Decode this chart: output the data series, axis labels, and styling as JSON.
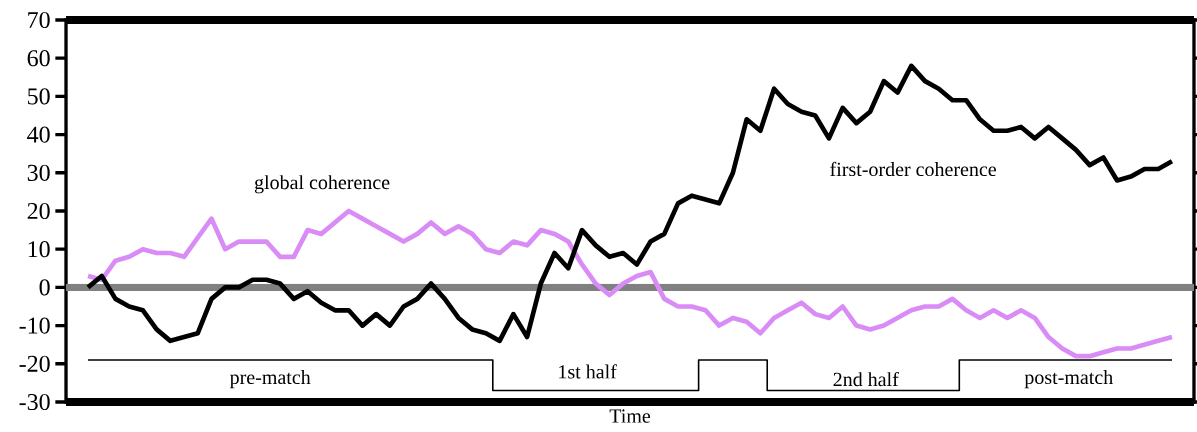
{
  "chart_data": {
    "type": "line",
    "xlabel": "Time",
    "categories": [
      null,
      null,
      null,
      null,
      null,
      null,
      null,
      null,
      null,
      null,
      null,
      null,
      null,
      null,
      null,
      null,
      null,
      null,
      null,
      null,
      null,
      null,
      null,
      null,
      null,
      null,
      null,
      null,
      null,
      null,
      null,
      null,
      null,
      null,
      null,
      null,
      null,
      null,
      null,
      null,
      null,
      null,
      null,
      null,
      null,
      null,
      null,
      null,
      null,
      null,
      null,
      null,
      null,
      null,
      null,
      null,
      null,
      null,
      null,
      null,
      null,
      null,
      null,
      null,
      null,
      null,
      null,
      null,
      null,
      null,
      null,
      null,
      null,
      null,
      null,
      null,
      null,
      null,
      null,
      null
    ],
    "series": [
      {
        "name": "global coherence",
        "color": "#d98cf5",
        "values": [
          3,
          2,
          7,
          8,
          10,
          9,
          9,
          8,
          13,
          18,
          10,
          12,
          12,
          12,
          8,
          8,
          15,
          14,
          17,
          20,
          18,
          16,
          14,
          12,
          14,
          17,
          14,
          16,
          14,
          10,
          9,
          12,
          11,
          15,
          14,
          12,
          6,
          1,
          -2,
          1,
          3,
          4,
          -3,
          -5,
          -5,
          -6,
          -10,
          -8,
          -9,
          -12,
          -8,
          -6,
          -4,
          -7,
          -8,
          -5,
          -10,
          -11,
          -10,
          -8,
          -6,
          -5,
          -5,
          -3,
          -6,
          -8,
          -6,
          -8,
          -6,
          -8,
          -13,
          -16,
          -18,
          -18,
          -17,
          -16,
          -16,
          -15,
          -14,
          -13
        ]
      },
      {
        "name": "first-order coherence",
        "color": "#000000",
        "values": [
          0,
          3,
          -3,
          -5,
          -6,
          -11,
          -14,
          -13,
          -12,
          -3,
          0,
          0,
          2,
          2,
          1,
          -3,
          -1,
          -4,
          -6,
          -6,
          -10,
          -7,
          -10,
          -5,
          -3,
          1,
          -3,
          -8,
          -11,
          -12,
          -14,
          -7,
          -13,
          1,
          9,
          5,
          15,
          11,
          8,
          9,
          6,
          12,
          14,
          22,
          24,
          23,
          22,
          30,
          44,
          41,
          52,
          48,
          46,
          45,
          39,
          47,
          43,
          46,
          54,
          51,
          58,
          54,
          52,
          49,
          49,
          44,
          41,
          41,
          42,
          39,
          42,
          39,
          36,
          32,
          34,
          28,
          29,
          31,
          31,
          33
        ]
      },
      {
        "type": "step",
        "color": "#000000",
        "values": [
          -19,
          -19,
          -19,
          -19,
          -19,
          -19,
          -19,
          -19,
          -19,
          -19,
          -19,
          -19,
          -19,
          -19,
          -19,
          -19,
          -19,
          -19,
          -19,
          -19,
          -19,
          -19,
          -19,
          -19,
          -19,
          -19,
          -19,
          -19,
          -19,
          -19,
          -27,
          -27,
          -27,
          -27,
          -27,
          -27,
          -27,
          -27,
          -27,
          -27,
          -27,
          -27,
          -27,
          -27,
          -27,
          -19,
          -19,
          -19,
          -19,
          -19,
          -27,
          -27,
          -27,
          -27,
          -27,
          -27,
          -27,
          -27,
          -27,
          -27,
          -27,
          -27,
          -27,
          -27,
          -19,
          -19,
          -19,
          -19,
          -19,
          -19,
          -19,
          -19,
          -19,
          -19,
          -19,
          -19,
          -19,
          -19,
          -19,
          -19
        ]
      }
    ],
    "ylim": [
      -30,
      70
    ],
    "yticks": [
      -30,
      -20,
      -10,
      0,
      10,
      20,
      30,
      40,
      50,
      60,
      70
    ],
    "tick_labels": "y",
    "marker": "none",
    "line_style": "solid",
    "ref_lines": [
      {
        "axis": "y",
        "value": 0,
        "color": "#808080"
      }
    ],
    "annotations": [
      "pre-match",
      "1st half",
      "2nd half",
      "post-match"
    ]
  }
}
